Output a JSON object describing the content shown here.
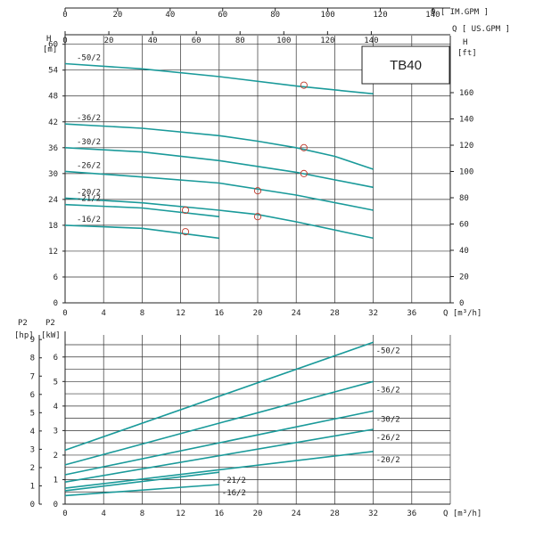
{
  "chart_data": [
    {
      "type": "line",
      "title": "TB40",
      "xlabel": "Q [m³/h]",
      "ylabel_left": "H [m]",
      "ylabel_right": "H [ft]",
      "top_axis_1_label": "Q [ IM.GPM ]",
      "top_axis_2_label": "Q [ US.GPM ]",
      "xlim": [
        0,
        40
      ],
      "ylim": [
        0,
        62
      ],
      "x_ticks": [
        "0",
        "4",
        "8",
        "12",
        "16",
        "20",
        "24",
        "28",
        "32",
        "36"
      ],
      "y_ticks": [
        "0",
        "6",
        "12",
        "18",
        "24",
        "30",
        "36",
        "42",
        "48",
        "54",
        "60"
      ],
      "ft_ticks": [
        "0",
        "20",
        "40",
        "60",
        "80",
        "100",
        "120",
        "140",
        "160"
      ],
      "im_gpm_ticks": [
        "0",
        "20",
        "40",
        "60",
        "80",
        "100",
        "120",
        "140"
      ],
      "us_gpm_ticks": [
        "0",
        "20",
        "40",
        "60",
        "80",
        "100",
        "120",
        "140"
      ],
      "grid": true,
      "series": [
        {
          "name": "-50/2",
          "label": "-50/2",
          "x": [
            0,
            8,
            16,
            24,
            32
          ],
          "y": [
            55.5,
            54.3,
            52.5,
            50.3,
            48.5
          ],
          "point": [
            24.8,
            50.5
          ]
        },
        {
          "name": "-36/2",
          "label": "-36/2",
          "x": [
            0,
            8,
            16,
            20,
            24,
            28,
            32
          ],
          "y": [
            41.5,
            40.5,
            38.8,
            37.5,
            36,
            34,
            31
          ]
        },
        {
          "name": "-30/2",
          "label": "-30/2",
          "x": [
            0,
            8,
            16,
            24,
            32
          ],
          "y": [
            36,
            35,
            33,
            30.3,
            26.8
          ],
          "point": [
            24.8,
            36
          ]
        },
        {
          "name": "-26/2",
          "label": "-26/2",
          "x": [
            0,
            8,
            16,
            24,
            32
          ],
          "y": [
            30.5,
            29.2,
            27.8,
            25,
            21.5
          ],
          "point": [
            24.8,
            30
          ]
        },
        {
          "name": "-20/2",
          "label": "-20/2",
          "x": [
            0,
            8,
            16,
            20,
            24,
            32
          ],
          "y": [
            24.3,
            23.2,
            21.5,
            20.5,
            18.8,
            15
          ],
          "point": [
            20,
            26
          ]
        },
        {
          "name": "-21/2",
          "label": "-21/2",
          "x": [
            0,
            8,
            16
          ],
          "y": [
            22.8,
            22,
            20
          ],
          "point": [
            12.5,
            21.5
          ]
        },
        {
          "name": "-16/2",
          "label": "-16/2",
          "x": [
            0,
            8,
            16
          ],
          "y": [
            18,
            17.3,
            15
          ],
          "point": [
            12.5,
            16.5
          ]
        }
      ],
      "extra_points": [
        [
          20,
          20
        ]
      ]
    },
    {
      "type": "line",
      "xlabel": "Q [m³/h]",
      "ylabel_left": "P2 [hp]",
      "ylabel_right": "P2 [kW]",
      "xlim": [
        0,
        40
      ],
      "ylim": [
        0,
        6.9
      ],
      "x_ticks": [
        "0",
        "4",
        "8",
        "12",
        "16",
        "20",
        "24",
        "28",
        "32",
        "36"
      ],
      "hp_ticks": [
        "0",
        "1",
        "2",
        "3",
        "4",
        "5",
        "6",
        "7",
        "8",
        "9"
      ],
      "kw_ticks": [
        "0",
        "1",
        "2",
        "3",
        "4",
        "5",
        "6"
      ],
      "grid": true,
      "series": [
        {
          "name": "-50/2",
          "label": "-50/2",
          "x": [
            0,
            32
          ],
          "y": [
            2.2,
            6.6
          ]
        },
        {
          "name": "-36/2",
          "label": "-36/2",
          "x": [
            0,
            32
          ],
          "y": [
            1.6,
            5.0
          ]
        },
        {
          "name": "-30/2",
          "label": "-30/2",
          "x": [
            0,
            32
          ],
          "y": [
            1.2,
            3.8
          ]
        },
        {
          "name": "-26/2",
          "label": "-26/2",
          "x": [
            0,
            32
          ],
          "y": [
            0.9,
            3.05
          ]
        },
        {
          "name": "-20/2",
          "label": "-20/2",
          "x": [
            0,
            32
          ],
          "y": [
            0.65,
            2.15
          ]
        },
        {
          "name": "-21/2",
          "label": "-21/2",
          "x": [
            0,
            16
          ],
          "y": [
            0.55,
            1.3
          ]
        },
        {
          "name": "-16/2",
          "label": "-16/2",
          "x": [
            0,
            16
          ],
          "y": [
            0.35,
            0.8
          ]
        }
      ]
    }
  ]
}
